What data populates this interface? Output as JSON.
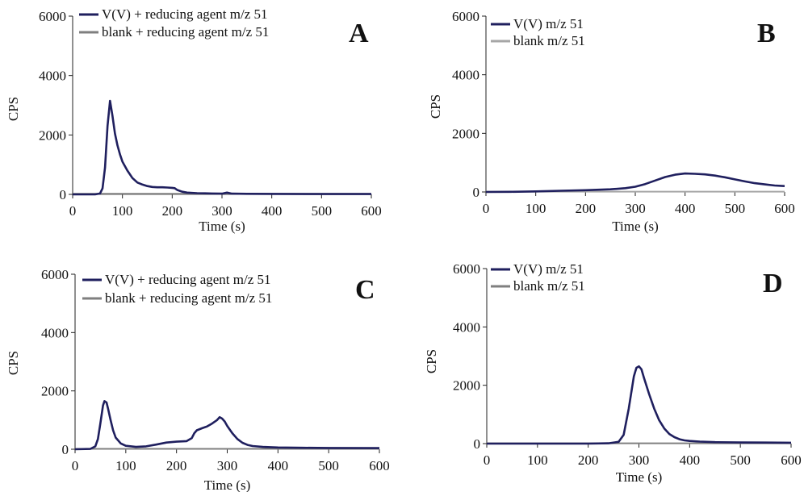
{
  "chart_data": [
    {
      "type": "line",
      "panel_label": "A",
      "xlabel": "Time (s)",
      "ylabel": "CPS",
      "xlim": [
        0,
        600
      ],
      "ylim": [
        0,
        6000
      ],
      "xticks": [
        0,
        100,
        200,
        300,
        400,
        500,
        600
      ],
      "yticks": [
        0,
        2000,
        4000,
        6000
      ],
      "legend_position": "top-left",
      "series": [
        {
          "name": "V(V) + reducing agent m/z 51",
          "color": "#1f1f5e",
          "x": [
            0,
            45,
            55,
            60,
            65,
            70,
            75,
            80,
            85,
            90,
            95,
            100,
            110,
            120,
            130,
            140,
            150,
            160,
            170,
            180,
            190,
            200,
            205,
            210,
            220,
            230,
            250,
            280,
            300,
            310,
            320,
            350,
            400,
            500,
            600
          ],
          "y": [
            0,
            0,
            30,
            200,
            900,
            2300,
            3150,
            2650,
            2050,
            1650,
            1350,
            1100,
            800,
            550,
            400,
            330,
            280,
            250,
            240,
            240,
            230,
            220,
            210,
            150,
            90,
            60,
            40,
            30,
            25,
            60,
            25,
            20,
            15,
            10,
            10
          ]
        },
        {
          "name": "blank + reducing agent m/z 51",
          "color": "#7f7f7f",
          "x": [
            0,
            600
          ],
          "y": [
            20,
            20
          ]
        }
      ]
    },
    {
      "type": "line",
      "panel_label": "B",
      "xlabel": "Time (s)",
      "ylabel": "CPS",
      "xlim": [
        0,
        600
      ],
      "ylim": [
        0,
        6000
      ],
      "xticks": [
        0,
        100,
        200,
        300,
        400,
        500,
        600
      ],
      "yticks": [
        0,
        2000,
        4000,
        6000
      ],
      "legend_position": "top-left",
      "series": [
        {
          "name": "V(V) m/z 51",
          "color": "#1f1f5e",
          "x": [
            0,
            50,
            100,
            150,
            200,
            250,
            280,
            300,
            320,
            340,
            360,
            380,
            400,
            420,
            440,
            460,
            480,
            500,
            520,
            540,
            560,
            580,
            600
          ],
          "y": [
            0,
            5,
            20,
            40,
            60,
            90,
            130,
            180,
            270,
            390,
            510,
            590,
            630,
            620,
            600,
            560,
            500,
            430,
            360,
            300,
            260,
            220,
            200
          ]
        },
        {
          "name": "blank m/z 51",
          "color": "#a6a6a6",
          "x": [
            0,
            600
          ],
          "y": [
            10,
            10
          ]
        }
      ]
    },
    {
      "type": "line",
      "panel_label": "C",
      "xlabel": "Time (s)",
      "ylabel": "CPS",
      "xlim": [
        0,
        600
      ],
      "ylim": [
        0,
        6000
      ],
      "xticks": [
        0,
        100,
        200,
        300,
        400,
        500,
        600
      ],
      "yticks": [
        0,
        2000,
        4000,
        6000
      ],
      "legend_position": "top-left",
      "series": [
        {
          "name": "V(V) + reducing agent m/z 51",
          "color": "#1f1f5e",
          "x": [
            0,
            30,
            40,
            45,
            50,
            55,
            58,
            62,
            65,
            70,
            75,
            80,
            90,
            100,
            120,
            140,
            160,
            180,
            200,
            220,
            230,
            235,
            240,
            250,
            260,
            270,
            280,
            285,
            290,
            295,
            300,
            310,
            320,
            330,
            340,
            350,
            370,
            400,
            450,
            500,
            600
          ],
          "y": [
            0,
            10,
            100,
            350,
            900,
            1500,
            1650,
            1600,
            1400,
            1000,
            650,
            400,
            200,
            120,
            80,
            100,
            160,
            230,
            260,
            280,
            380,
            550,
            650,
            720,
            780,
            880,
            1000,
            1100,
            1050,
            950,
            800,
            550,
            350,
            220,
            150,
            110,
            80,
            60,
            50,
            45,
            40
          ]
        },
        {
          "name": "blank + reducing agent m/z 51",
          "color": "#7f7f7f",
          "x": [
            0,
            600
          ],
          "y": [
            15,
            15
          ]
        }
      ]
    },
    {
      "type": "line",
      "panel_label": "D",
      "xlabel": "Time (s)",
      "ylabel": "CPS",
      "xlim": [
        0,
        600
      ],
      "ylim": [
        0,
        6000
      ],
      "xticks": [
        0,
        100,
        200,
        300,
        400,
        500,
        600
      ],
      "yticks": [
        0,
        2000,
        4000,
        6000
      ],
      "legend_position": "top-left",
      "series": [
        {
          "name": "V(V) m/z 51",
          "color": "#1f1f5e",
          "x": [
            0,
            200,
            240,
            260,
            270,
            280,
            290,
            295,
            300,
            305,
            310,
            320,
            330,
            340,
            350,
            360,
            370,
            380,
            390,
            400,
            420,
            450,
            500,
            550,
            600
          ],
          "y": [
            0,
            0,
            10,
            60,
            300,
            1200,
            2300,
            2600,
            2650,
            2550,
            2250,
            1700,
            1200,
            800,
            520,
            330,
            220,
            150,
            110,
            90,
            70,
            50,
            40,
            35,
            30
          ]
        },
        {
          "name": "blank m/z 51",
          "color": "#7f7f7f",
          "x": [
            0,
            600
          ],
          "y": [
            10,
            10
          ]
        }
      ]
    }
  ]
}
